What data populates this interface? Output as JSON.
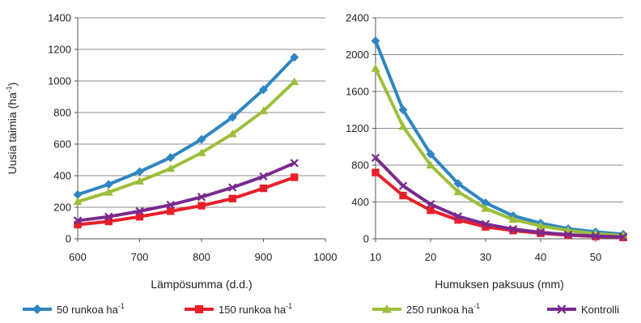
{
  "chart_data": [
    {
      "type": "line",
      "title": "",
      "xlabel": "Lämpösumma (d.d.)",
      "ylabel": "Uusia taimia (ha⁻¹)",
      "ylabel_main": "Uusia taimia (ha",
      "ylabel_sup": "-1",
      "ylabel_end": ")",
      "xlim": [
        600,
        1000
      ],
      "ylim": [
        0,
        1400
      ],
      "x_ticks": [
        600,
        700,
        800,
        900,
        1000
      ],
      "y_ticks": [
        0,
        200,
        400,
        600,
        800,
        1000,
        1200,
        1400
      ],
      "grid": "horizontal",
      "x": [
        600,
        650,
        700,
        750,
        800,
        850,
        900,
        950
      ],
      "series": [
        {
          "name": "50 runkoa ha-1",
          "color": "#2e86c1",
          "marker": "diamond",
          "values": [
            280,
            345,
            425,
            515,
            630,
            770,
            945,
            1150
          ]
        },
        {
          "name": "150 runkoa ha-1",
          "color": "#e8202a",
          "marker": "square",
          "values": [
            90,
            110,
            140,
            175,
            210,
            255,
            320,
            390
          ]
        },
        {
          "name": "250 runkoa ha-1",
          "color": "#9cbf3b",
          "marker": "triangle",
          "values": [
            235,
            295,
            365,
            445,
            545,
            665,
            810,
            995
          ]
        },
        {
          "name": "Kontrolli",
          "color": "#7a2a8e",
          "marker": "x",
          "values": [
            115,
            140,
            175,
            215,
            265,
            325,
            395,
            480
          ]
        }
      ]
    },
    {
      "type": "line",
      "title": "",
      "xlabel": "Humuksen paksuus (mm)",
      "ylabel": "",
      "xlim": [
        10,
        55
      ],
      "ylim": [
        0,
        2400
      ],
      "x_ticks": [
        10,
        20,
        30,
        40,
        50
      ],
      "y_ticks": [
        0,
        400,
        800,
        1200,
        1600,
        2000,
        2400
      ],
      "grid": "horizontal",
      "x": [
        10,
        15,
        20,
        25,
        30,
        35,
        40,
        45,
        50,
        55
      ],
      "series": [
        {
          "name": "50 runkoa ha-1",
          "color": "#2e86c1",
          "marker": "diamond",
          "values": [
            2150,
            1400,
            920,
            600,
            390,
            250,
            170,
            110,
            75,
            50
          ]
        },
        {
          "name": "150 runkoa ha-1",
          "color": "#e8202a",
          "marker": "square",
          "values": [
            720,
            470,
            310,
            205,
            130,
            90,
            60,
            40,
            25,
            15
          ]
        },
        {
          "name": "250 runkoa ha-1",
          "color": "#9cbf3b",
          "marker": "triangle",
          "values": [
            1850,
            1220,
            800,
            510,
            330,
            210,
            140,
            90,
            55,
            35
          ]
        },
        {
          "name": "Kontrolli",
          "color": "#7a2a8e",
          "marker": "x",
          "values": [
            880,
            575,
            375,
            245,
            160,
            105,
            70,
            45,
            30,
            20
          ]
        }
      ]
    }
  ],
  "legend": [
    {
      "label": "50 runkoa ha",
      "sup": "-1",
      "color": "#2e86c1",
      "marker": "diamond"
    },
    {
      "label": "150 runkoa ha",
      "sup": "-1",
      "color": "#e8202a",
      "marker": "square"
    },
    {
      "label": "250 runkoa ha",
      "sup": "-1",
      "color": "#9cbf3b",
      "marker": "triangle"
    },
    {
      "label": "Kontrolli",
      "sup": "",
      "color": "#7a2a8e",
      "marker": "x"
    }
  ]
}
